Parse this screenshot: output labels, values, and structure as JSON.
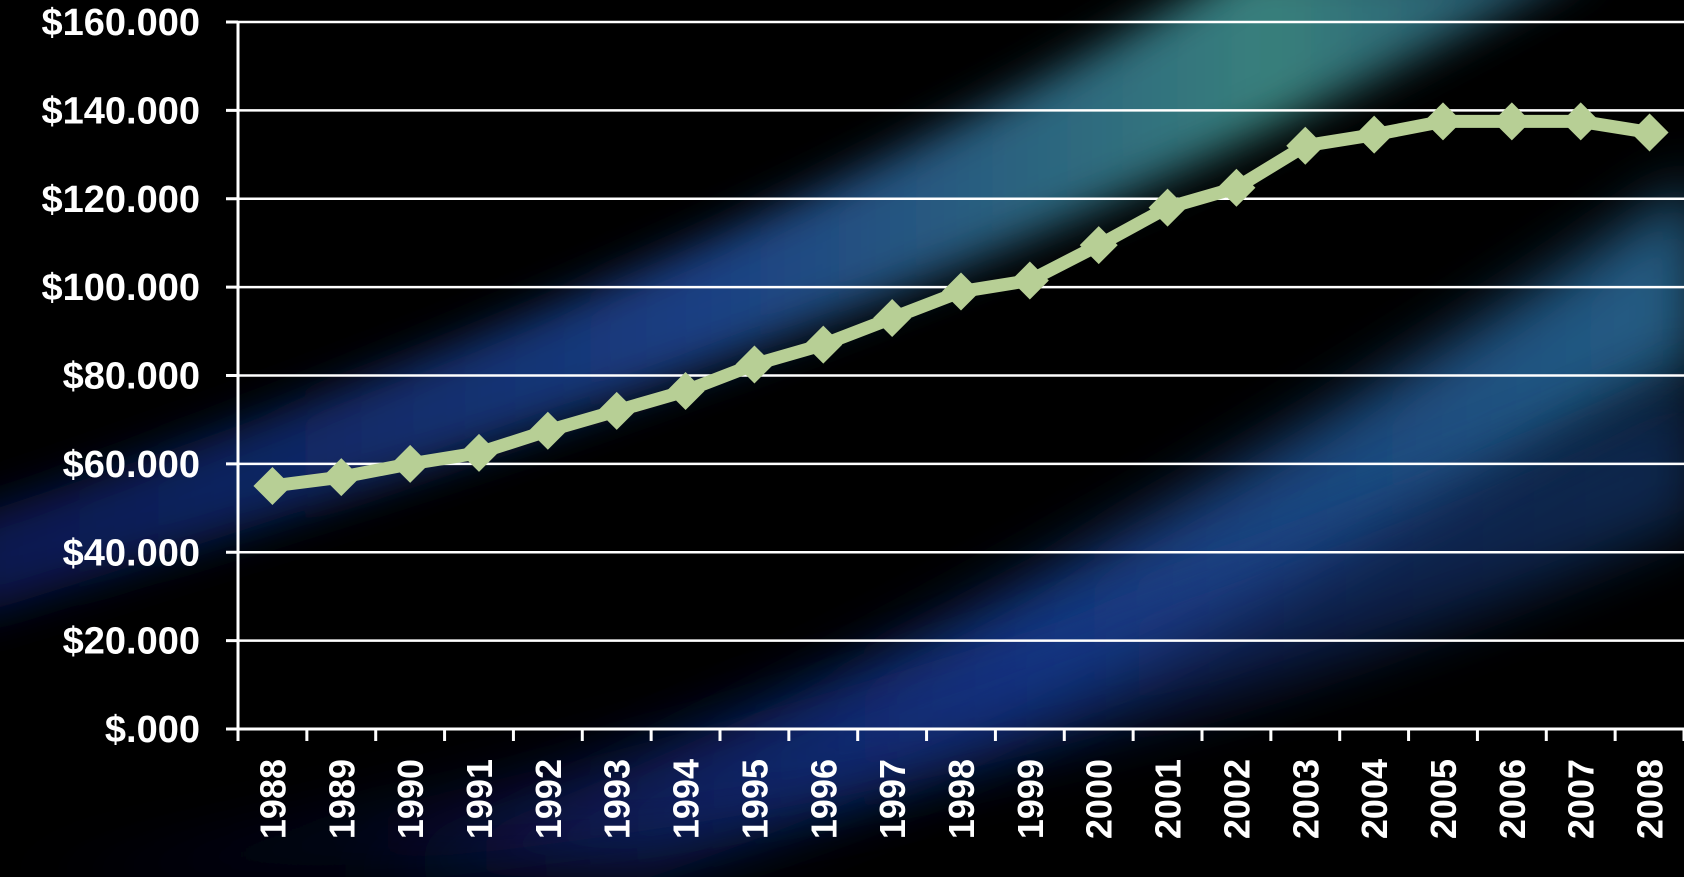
{
  "chart_data": {
    "type": "line",
    "title": "",
    "xlabel": "",
    "ylabel": "",
    "categories": [
      "1988",
      "1989",
      "1990",
      "1991",
      "1992",
      "1993",
      "1994",
      "1995",
      "1996",
      "1997",
      "1998",
      "1999",
      "2000",
      "2001",
      "2002",
      "2003",
      "2004",
      "2005",
      "2006",
      "2007",
      "2008"
    ],
    "series": [
      {
        "values": [
          55000,
          57000,
          60000,
          62500,
          67500,
          72000,
          76500,
          82500,
          87000,
          93000,
          99000,
          101500,
          109500,
          118000,
          122500,
          132000,
          134500,
          137500,
          137500,
          137500,
          135000
        ],
        "color": "#b7cf95",
        "marker": "diamond"
      }
    ],
    "ylim": [
      0,
      160000
    ],
    "y_ticks": [
      "$.000",
      "$20.000",
      "$40.000",
      "$60.000",
      "$80.000",
      "$100.000",
      "$120.000",
      "$140.000",
      "$160.000"
    ],
    "y_tick_values": [
      0,
      20000,
      40000,
      60000,
      80000,
      100000,
      120000,
      140000,
      160000
    ],
    "grid": true,
    "legend": "none",
    "colors": {
      "background": "#000000",
      "gridline": "#ffffff",
      "text": "#ffffff",
      "line": "#b7cf95",
      "decor_blue": "#1a3a9a",
      "decor_teal": "#3a8a8a"
    }
  }
}
